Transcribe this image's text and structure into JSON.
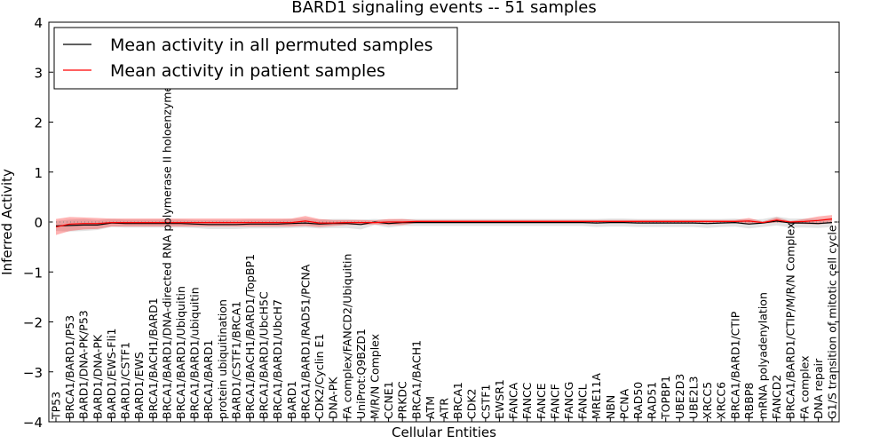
{
  "chart_data": {
    "type": "line",
    "title": "BARD1 signaling events -- 51 samples",
    "xlabel": "Cellular Entities",
    "ylabel": "Inferred Activity",
    "ylim": [
      -4,
      4
    ],
    "yticks": [
      -4,
      -3,
      -2,
      -1,
      0,
      1,
      2,
      3,
      4
    ],
    "ytick_labels": [
      "−4",
      "−3",
      "−2",
      "−1",
      "0",
      "1",
      "2",
      "3",
      "4"
    ],
    "grid": false,
    "legend_position": "top-left",
    "categories": [
      "TP53",
      "BRCA1/BARD1/P53",
      "BARD1/DNA-PK/P53",
      "BARD1/DNA-PK",
      "BARD1/EWS-Fli1",
      "BARD1/CSTF1",
      "BARD1/EWS",
      "BRCA1/BACH1/BARD1",
      "BRCA1/BARD1/DNA-directed RNA polymerase II holoenzyme",
      "BRCA1/BARD1/Ubiquitin",
      "BRCA1/BARD1/ubiquitin",
      "BRCA1/BARD1",
      "protein ubiquitination",
      "BARD1/CSTF1/BRCA1",
      "BRCA1/BACH1/BARD1/TopBP1",
      "BRCA1/BARD1/UbcH5C",
      "BRCA1/BARD1/UbcH7",
      "BARD1",
      "BRCA1/BARD1/RAD51/PCNA",
      "CDK2/Cyclin E1",
      "DNA-PK",
      "FA complex/FANCD2/Ubiquitin",
      "UniProt:Q9BZD1",
      "M/R/N Complex",
      "CCNE1",
      "PRKDC",
      "BRCA1/BACH1",
      "ATM",
      "ATR",
      "BRCA1",
      "CDK2",
      "CSTF1",
      "EWSR1",
      "FANCA",
      "FANCC",
      "FANCE",
      "FANCF",
      "FANCG",
      "FANCL",
      "MRE11A",
      "NBN",
      "PCNA",
      "RAD50",
      "RAD51",
      "TOPBP1",
      "UBE2D3",
      "UBE2L3",
      "XRCC5",
      "XRCC6",
      "BRCA1/BARD1/CTIP",
      "RBBP8",
      "mRNA polyadenylation",
      "FANCD2",
      "BRCA1/BARD1/CTIP/M/R/N Complex",
      "FA complex",
      "DNA repair",
      "G1/S transition of mitotic cell cycle"
    ],
    "series": [
      {
        "name": "Mean activity in all permuted samples",
        "color": "#000000",
        "values": [
          -0.08,
          -0.07,
          -0.06,
          -0.06,
          -0.02,
          -0.03,
          -0.03,
          -0.03,
          -0.03,
          -0.03,
          -0.04,
          -0.05,
          -0.05,
          -0.05,
          -0.04,
          -0.04,
          -0.04,
          -0.03,
          -0.02,
          -0.04,
          -0.03,
          -0.03,
          -0.05,
          0.0,
          -0.03,
          -0.01,
          -0.01,
          -0.01,
          -0.01,
          -0.01,
          -0.01,
          -0.01,
          -0.01,
          -0.01,
          -0.01,
          -0.01,
          -0.01,
          -0.01,
          -0.01,
          -0.02,
          -0.01,
          -0.01,
          -0.02,
          -0.02,
          -0.02,
          -0.02,
          -0.02,
          -0.03,
          -0.02,
          -0.01,
          -0.04,
          -0.02,
          0.02,
          -0.02,
          -0.02,
          -0.03,
          -0.01
        ],
        "band": [
          0.1,
          0.12,
          0.12,
          0.1,
          0.08,
          0.08,
          0.08,
          0.08,
          0.08,
          0.08,
          0.08,
          0.09,
          0.09,
          0.09,
          0.09,
          0.09,
          0.09,
          0.09,
          0.09,
          0.09,
          0.09,
          0.09,
          0.1,
          0.06,
          0.08,
          0.07,
          0.07,
          0.07,
          0.07,
          0.07,
          0.07,
          0.07,
          0.07,
          0.07,
          0.07,
          0.07,
          0.07,
          0.07,
          0.07,
          0.08,
          0.08,
          0.08,
          0.08,
          0.08,
          0.08,
          0.08,
          0.08,
          0.09,
          0.08,
          0.08,
          0.09,
          0.08,
          0.09,
          0.09,
          0.09,
          0.09,
          0.09
        ]
      },
      {
        "name": "Mean activity in patient samples",
        "color": "#ff0000",
        "values": [
          -0.1,
          -0.04,
          -0.03,
          -0.03,
          -0.01,
          -0.01,
          -0.01,
          -0.01,
          -0.01,
          -0.01,
          -0.01,
          -0.01,
          -0.01,
          -0.01,
          -0.01,
          -0.01,
          -0.01,
          -0.01,
          0.02,
          -0.02,
          -0.02,
          -0.01,
          -0.01,
          -0.01,
          0.0,
          0.0,
          0.01,
          0.01,
          0.01,
          0.01,
          0.01,
          0.01,
          0.01,
          0.01,
          0.01,
          0.01,
          0.01,
          0.01,
          0.01,
          0.01,
          0.01,
          0.01,
          0.01,
          0.01,
          0.01,
          0.01,
          0.01,
          0.01,
          0.01,
          0.01,
          0.02,
          -0.01,
          0.04,
          0.0,
          0.01,
          0.03,
          0.06
        ],
        "band": [
          0.16,
          0.14,
          0.12,
          0.11,
          0.08,
          0.08,
          0.08,
          0.08,
          0.08,
          0.08,
          0.08,
          0.08,
          0.08,
          0.08,
          0.08,
          0.08,
          0.08,
          0.08,
          0.1,
          0.08,
          0.06,
          0.05,
          0.05,
          0.04,
          0.06,
          0.06,
          0.03,
          0.03,
          0.03,
          0.03,
          0.03,
          0.03,
          0.03,
          0.03,
          0.03,
          0.03,
          0.03,
          0.03,
          0.03,
          0.03,
          0.03,
          0.03,
          0.03,
          0.03,
          0.03,
          0.03,
          0.03,
          0.03,
          0.03,
          0.03,
          0.06,
          0.02,
          0.05,
          0.02,
          0.05,
          0.08,
          0.08
        ]
      }
    ]
  }
}
